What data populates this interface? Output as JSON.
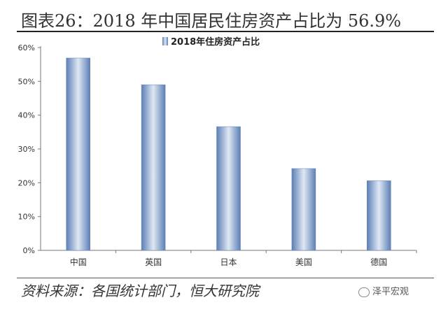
{
  "figure": {
    "title": "图表26：2018 年中国居民住房资产占比为 56.9%",
    "source": "资料来源：各国统计部门，恒大研究院",
    "watermark": "泽平宏观"
  },
  "chart_data": {
    "type": "bar",
    "title": "",
    "xlabel": "",
    "ylabel": "",
    "categories": [
      "中国",
      "英国",
      "日本",
      "美国",
      "德国"
    ],
    "series": [
      {
        "name": "2018年住房资产占比",
        "values": [
          56.9,
          49.0,
          36.6,
          24.2,
          20.6
        ]
      }
    ],
    "ylim": [
      0,
      60
    ],
    "yticks": [
      0,
      10,
      20,
      30,
      40,
      50,
      60
    ],
    "ytick_labels": [
      "0%",
      "10%",
      "20%",
      "30%",
      "40%",
      "50%",
      "60%"
    ],
    "grid": false,
    "legend": "top-center",
    "colors": {
      "bar_edge": "#5c7fb5",
      "bar_mid": "#dfe8f4",
      "axis": "#777777"
    }
  }
}
